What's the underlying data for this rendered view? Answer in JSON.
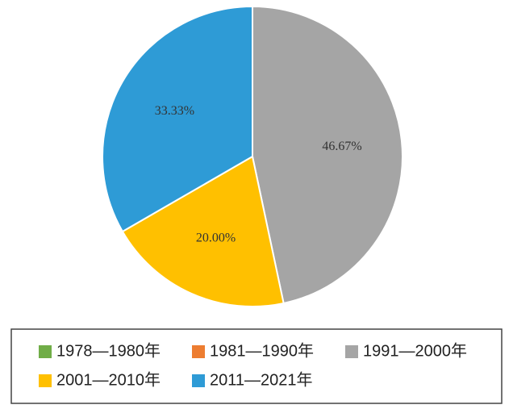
{
  "chart_data": {
    "type": "pie",
    "categories": [
      "1978—1980年",
      "1981—1990年",
      "1991—2000年",
      "2001—2010年",
      "2011—2021年"
    ],
    "values": [
      0,
      0,
      46.67,
      20.0,
      33.33
    ],
    "value_labels": [
      null,
      null,
      "46.67%",
      "20.00%",
      "33.33%"
    ],
    "colors": [
      "#70ad47",
      "#ed7d31",
      "#a5a5a5",
      "#ffc000",
      "#2e9bd6"
    ]
  }
}
